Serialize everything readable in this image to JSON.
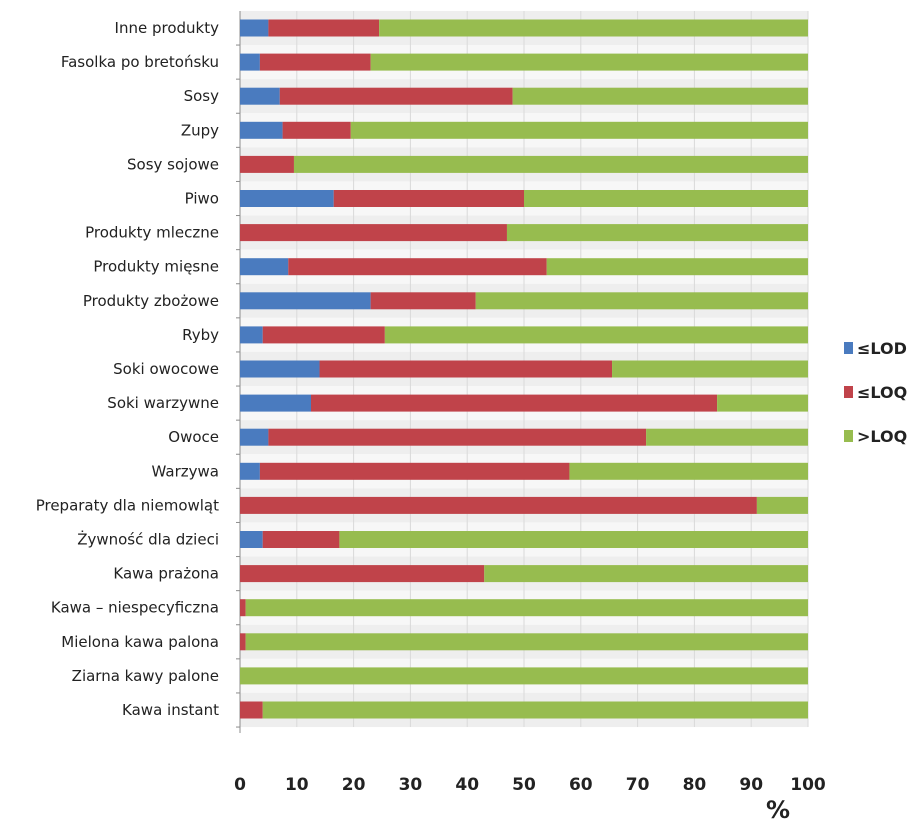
{
  "chart_data": {
    "type": "bar",
    "orientation": "horizontal",
    "stacked": true,
    "categories": [
      "Inne produkty",
      "Fasolka po bretońsku",
      "Sosy",
      "Zupy",
      "Sosy sojowe",
      "Piwo",
      "Produkty mleczne",
      "Produkty mięsne",
      "Produkty zbożowe",
      "Ryby",
      "Soki owocowe",
      "Soki warzywne",
      "Owoce",
      "Warzywa",
      "Preparaty dla niemowląt",
      "Żywność dla dzieci",
      "Kawa prażona",
      "Kawa – niespecyficzna",
      "Mielona kawa palona",
      "Ziarna kawy palone",
      "Kawa instant"
    ],
    "series": [
      {
        "name": "≤LOD",
        "color": "#4a7bbf",
        "values": [
          5,
          3.5,
          7,
          7.5,
          0,
          16.5,
          0,
          8.5,
          23,
          4,
          14,
          12.5,
          5,
          3.5,
          0,
          4,
          0,
          0,
          0,
          0,
          0
        ]
      },
      {
        "name": "≤LOQ",
        "color": "#c0434a",
        "values": [
          19.5,
          19.5,
          41,
          12,
          9.5,
          33.5,
          47,
          45.5,
          18.5,
          21.5,
          51.5,
          71.5,
          66.5,
          54.5,
          91,
          13.5,
          43,
          1,
          1,
          0,
          4
        ]
      },
      {
        "name": ">LOQ",
        "color": "#97bc4f",
        "values": [
          75.5,
          77,
          52,
          80.5,
          90.5,
          50,
          53,
          46,
          58.5,
          74.5,
          34.5,
          16,
          28.5,
          42,
          9,
          82.5,
          57,
          99,
          99,
          100,
          96
        ]
      }
    ],
    "xlim": [
      0,
      100
    ],
    "xticks": [
      "0",
      "10",
      "20",
      "30",
      "40",
      "50",
      "60",
      "70",
      "80",
      "90",
      "100"
    ],
    "xlabel": "%",
    "legend_position": "right",
    "grid": false
  }
}
